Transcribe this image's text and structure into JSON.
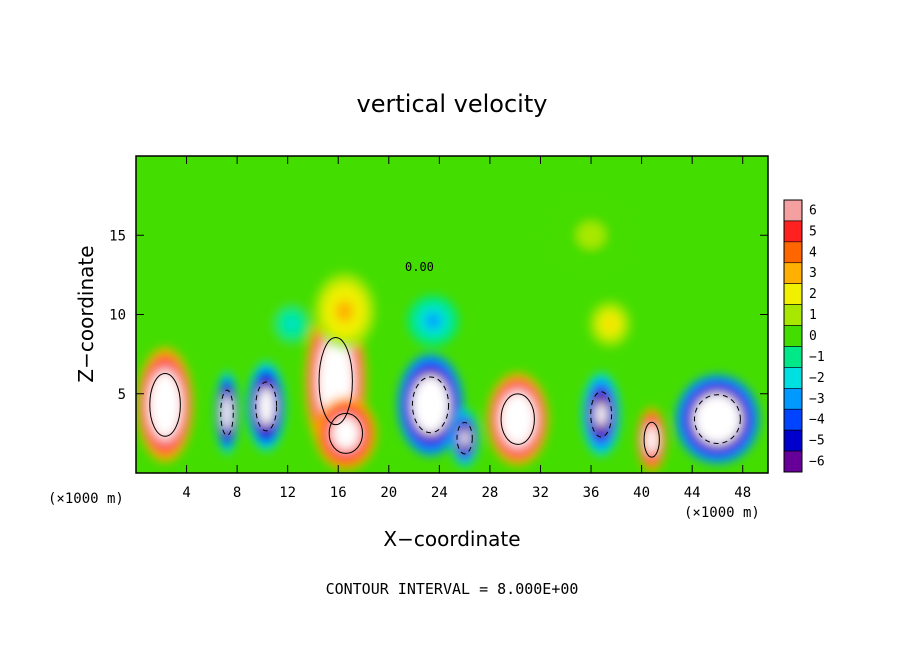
{
  "chart_data": {
    "type": "heatmap",
    "title": "vertical velocity",
    "xlabel": "X−coordinate",
    "ylabel": "Z−coordinate",
    "x_unit_left": "(×1000 m)",
    "x_unit_right": "(×1000 m)",
    "footer": "CONTOUR INTERVAL = 8.000E+00",
    "xlim": [
      0,
      50
    ],
    "ylim": [
      0,
      20
    ],
    "xticks": [
      4,
      8,
      12,
      16,
      20,
      24,
      28,
      32,
      36,
      40,
      44,
      48
    ],
    "xtick_labels": [
      "4",
      "8",
      "12",
      "16",
      "20",
      "24",
      "28",
      "32",
      "36",
      "40",
      "44",
      "48"
    ],
    "yticks": [
      5,
      10,
      15
    ],
    "ytick_labels": [
      "5",
      "10",
      "15"
    ],
    "colorbar": {
      "levels": [
        6,
        5,
        4,
        3,
        2,
        1,
        0,
        -1,
        -2,
        -3,
        -4,
        -5,
        -6
      ],
      "labels": [
        "6",
        "5",
        "4",
        "3",
        "2",
        "1",
        "0",
        "−1",
        "−2",
        "−3",
        "−4",
        "−5",
        "−6"
      ],
      "colors": [
        "#f4a0a0",
        "#ff2020",
        "#ff6600",
        "#ffb000",
        "#f0f000",
        "#a8e800",
        "#44dd00",
        "#00e888",
        "#00e0e0",
        "#0099ff",
        "#0044ff",
        "#0000cc",
        "#660099"
      ]
    },
    "contour_label": "0.00",
    "cells": [
      {
        "x": 2.3,
        "z": 4.3,
        "w": 1.0,
        "h": 1.0,
        "v": 12,
        "rx": 2.2,
        "rz": 3.6
      },
      {
        "x": 7.2,
        "z": 3.8,
        "w": 1.0,
        "h": 1.0,
        "v": -10,
        "rx": 0.9,
        "rz": 2.6
      },
      {
        "x": 10.3,
        "z": 4.2,
        "w": 1.0,
        "h": 1.0,
        "v": -10,
        "rx": 1.5,
        "rz": 2.8
      },
      {
        "x": 15.8,
        "z": 5.8,
        "w": 1.0,
        "h": 1.0,
        "v": 12,
        "rx": 2.4,
        "rz": 5.0
      },
      {
        "x": 16.6,
        "z": 2.5,
        "w": 1.0,
        "h": 1.0,
        "v": 10,
        "rx": 2.4,
        "rz": 2.3
      },
      {
        "x": 23.3,
        "z": 4.3,
        "w": 1.0,
        "h": 1.0,
        "v": -12,
        "rx": 2.6,
        "rz": 3.2
      },
      {
        "x": 26.0,
        "z": 2.2,
        "w": 1.0,
        "h": 1.0,
        "v": -9,
        "rx": 1.1,
        "rz": 1.8
      },
      {
        "x": 30.2,
        "z": 3.4,
        "w": 1.0,
        "h": 1.0,
        "v": 12,
        "rx": 2.4,
        "rz": 2.9
      },
      {
        "x": 36.8,
        "z": 3.7,
        "w": 1.0,
        "h": 1.0,
        "v": -9,
        "rx": 1.5,
        "rz": 2.6
      },
      {
        "x": 40.8,
        "z": 2.1,
        "w": 1.0,
        "h": 1.0,
        "v": 10,
        "rx": 1.1,
        "rz": 2.0
      },
      {
        "x": 46.0,
        "z": 3.4,
        "w": 1.0,
        "h": 1.0,
        "v": -12,
        "rx": 3.3,
        "rz": 2.8
      },
      {
        "x": 16.5,
        "z": 10.2,
        "w": 1.0,
        "h": 1.0,
        "v": 3,
        "rx": 2.4,
        "rz": 2.4
      },
      {
        "x": 23.5,
        "z": 9.6,
        "w": 1.0,
        "h": 1.0,
        "v": -3,
        "rx": 2.0,
        "rz": 1.6
      },
      {
        "x": 37.5,
        "z": 9.4,
        "w": 1.0,
        "h": 1.0,
        "v": 2.5,
        "rx": 1.6,
        "rz": 1.4
      },
      {
        "x": 12.3,
        "z": 9.4,
        "w": 1.0,
        "h": 1.0,
        "v": -2,
        "rx": 1.5,
        "rz": 1.3
      },
      {
        "x": 36.0,
        "z": 15.0,
        "w": 1.0,
        "h": 1.0,
        "v": 0.6,
        "rx": 4.0,
        "rz": 3.0
      }
    ]
  }
}
